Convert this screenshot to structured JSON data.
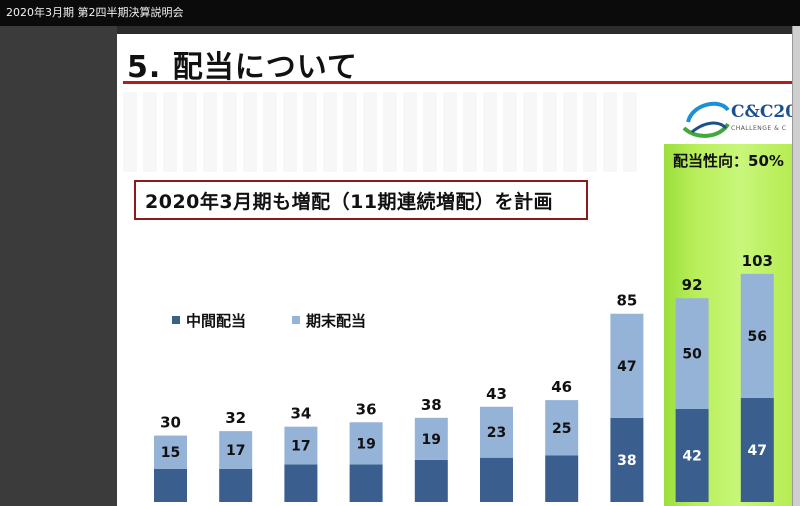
{
  "window": {
    "title": "2020年3月期 第2四半期決算説明会"
  },
  "slide": {
    "title": "5. 配当について",
    "callout": "2020年3月期も増配（11期連続増配）を計画",
    "logo_text": "C&C20",
    "logo_sub": "CHALLENGE & C",
    "payout_label": "配当性向：50%"
  },
  "colors": {
    "interim": "#3a5f8f",
    "year_end": "#95b3d7",
    "green": "#b9ef5a",
    "accent": "#b01e1e"
  },
  "chart_data": {
    "type": "bar",
    "stacked": true,
    "series": [
      {
        "name": "中間配当",
        "values": [
          15,
          15,
          17,
          17,
          19,
          20,
          21,
          38,
          42,
          47
        ]
      },
      {
        "name": "期末配当",
        "values": [
          15,
          17,
          17,
          19,
          19,
          23,
          25,
          47,
          50,
          56
        ]
      }
    ],
    "totals": [
      30,
      32,
      34,
      36,
      38,
      43,
      46,
      85,
      92,
      103
    ],
    "visible_labels": {
      "interim": [
        "",
        "",
        "",
        "",
        "",
        "",
        "",
        "38",
        "42",
        "47"
      ],
      "year_end": [
        "15",
        "17",
        "17",
        "19",
        "19",
        "23",
        "25",
        "47",
        "50",
        "56"
      ]
    },
    "legend": [
      "中間配当",
      "期末配当"
    ]
  }
}
